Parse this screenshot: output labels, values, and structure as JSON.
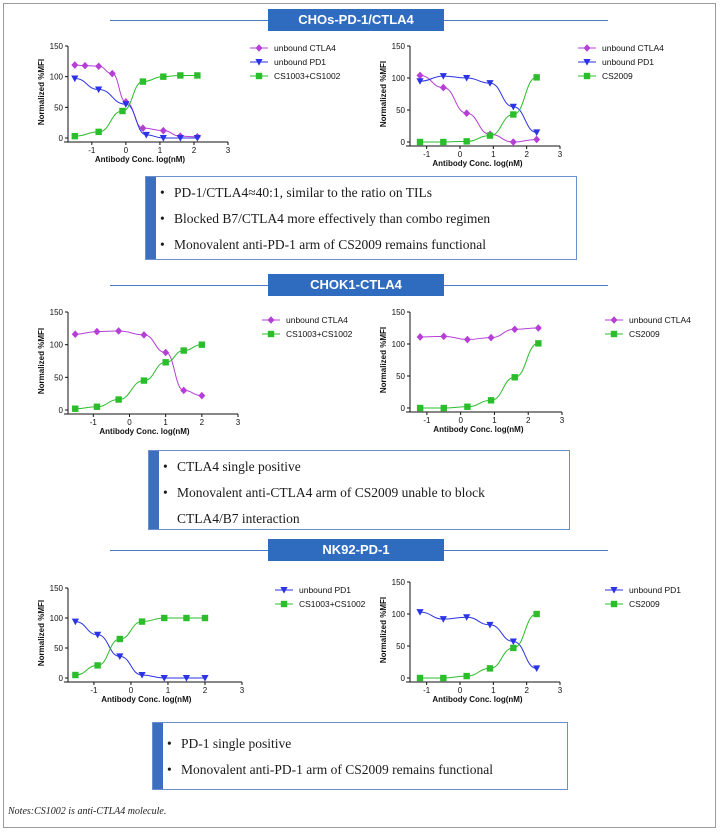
{
  "sections": [
    {
      "title": "CHOs-PD-1/CTLA4",
      "bullets": [
        "PD-1/CTLA4≈40:1, similar to the ratio on TILs",
        "Blocked B7/CTLA4 more effectively than combo regimen",
        "Monovalent anti-PD-1 arm of CS2009 remains functional"
      ]
    },
    {
      "title": "CHOK1-CTLA4",
      "bullets": [
        "CTLA4 single positive",
        "Monovalent anti-CTLA4 arm of CS2009 unable to block CTLA4/B7 interaction"
      ]
    },
    {
      "title": "NK92-PD-1",
      "bullets": [
        "PD-1 single positive",
        "Monovalent anti-PD-1 arm of CS2009 remains functional"
      ]
    }
  ],
  "notes": "Notes:CS1002 is anti-CTLA4 molecule.",
  "colors": {
    "ctla4": "#b53fd6",
    "pd1": "#2b33e6",
    "combo": "#2bbd2b",
    "section": "#2f6bbf"
  },
  "chart_data": [
    {
      "type": "scatter",
      "xlabel": "Antibody Conc. log(nM)",
      "ylabel": "Normalized %MFI",
      "xlim": [
        -1.7,
        3
      ],
      "ylim": [
        0,
        150
      ],
      "xticks": [
        -1,
        0,
        1,
        2,
        3
      ],
      "yticks": [
        0,
        50,
        100,
        150
      ],
      "legend": "right",
      "series": [
        {
          "name": "unbound CTLA4",
          "marker": "diamond",
          "color": "#b53fd6",
          "x": [
            -1.5,
            -1.2,
            -0.8,
            -0.4,
            0.0,
            0.5,
            1.1,
            1.6,
            2.1
          ],
          "y": [
            119,
            118,
            117,
            105,
            59,
            16,
            12,
            3,
            2
          ]
        },
        {
          "name": "unbound PD1",
          "marker": "tri",
          "color": "#2b33e6",
          "x": [
            -1.5,
            -0.8,
            0.0,
            0.6,
            1.1,
            1.6,
            2.1
          ],
          "y": [
            97,
            79,
            55,
            5,
            0,
            0,
            0
          ]
        },
        {
          "name": "CS1003+CS1002",
          "marker": "square",
          "color": "#2bbd2b",
          "x": [
            -1.5,
            -0.8,
            -0.1,
            0.5,
            1.1,
            1.6,
            2.1
          ],
          "y": [
            3,
            10,
            44,
            92,
            100,
            102,
            102
          ]
        }
      ]
    },
    {
      "type": "scatter",
      "xlabel": "Antibody Conc. log(nM)",
      "ylabel": "Normalized %MFI",
      "xlim": [
        -1.5,
        3
      ],
      "ylim": [
        0,
        150
      ],
      "xticks": [
        -1,
        0,
        1,
        2,
        3
      ],
      "yticks": [
        0,
        50,
        100,
        150
      ],
      "legend": "right",
      "series": [
        {
          "name": "unbound CTLA4",
          "marker": "diamond",
          "color": "#b53fd6",
          "x": [
            -1.2,
            -0.5,
            0.2,
            0.9,
            1.6,
            2.3
          ],
          "y": [
            104,
            85,
            45,
            12,
            0,
            4
          ]
        },
        {
          "name": "unbound PD1",
          "marker": "tri",
          "color": "#2b33e6",
          "x": [
            -1.2,
            -0.5,
            0.2,
            0.9,
            1.6,
            2.3
          ],
          "y": [
            95,
            103,
            100,
            92,
            55,
            15
          ]
        },
        {
          "name": "CS2009",
          "marker": "square",
          "color": "#2bbd2b",
          "x": [
            -1.2,
            -0.5,
            0.2,
            0.9,
            1.6,
            2.3
          ],
          "y": [
            0,
            0,
            1,
            10,
            43,
            101
          ]
        }
      ]
    },
    {
      "type": "scatter",
      "xlabel": "Antibody Conc. log(nM)",
      "ylabel": "Normalized %MFI",
      "xlim": [
        -1.7,
        3
      ],
      "ylim": [
        0,
        150
      ],
      "xticks": [
        -1,
        0,
        1,
        2,
        3
      ],
      "yticks": [
        0,
        50,
        100,
        150
      ],
      "legend": "right",
      "series": [
        {
          "name": "unbound CTLA4",
          "marker": "diamond",
          "color": "#b53fd6",
          "x": [
            -1.5,
            -0.9,
            -0.3,
            0.4,
            1.0,
            1.5,
            2.0
          ],
          "y": [
            116,
            120,
            121,
            115,
            88,
            30,
            22
          ]
        },
        {
          "name": "CS1003+CS1002",
          "marker": "square",
          "color": "#2bbd2b",
          "x": [
            -1.5,
            -0.9,
            -0.3,
            0.4,
            1.0,
            1.5,
            2.0
          ],
          "y": [
            2,
            5,
            16,
            45,
            73,
            91,
            100
          ]
        }
      ]
    },
    {
      "type": "scatter",
      "xlabel": "Antibody Conc. log(nM)",
      "ylabel": "Normalized %MFI",
      "xlim": [
        -1.5,
        3
      ],
      "ylim": [
        0,
        150
      ],
      "xticks": [
        -1,
        0,
        1,
        2,
        3
      ],
      "yticks": [
        0,
        50,
        100,
        150
      ],
      "legend": "right",
      "series": [
        {
          "name": "unbound CTLA4",
          "marker": "diamond",
          "color": "#b53fd6",
          "x": [
            -1.2,
            -0.5,
            0.2,
            0.9,
            1.6,
            2.3
          ],
          "y": [
            111,
            112,
            107,
            110,
            123,
            125
          ]
        },
        {
          "name": "CS2009",
          "marker": "square",
          "color": "#2bbd2b",
          "x": [
            -1.2,
            -0.5,
            0.2,
            0.9,
            1.6,
            2.3
          ],
          "y": [
            0,
            0,
            2,
            12,
            48,
            101
          ]
        }
      ]
    },
    {
      "type": "scatter",
      "xlabel": "Antibody Conc. log(nM)",
      "ylabel": "Normalized %MFI",
      "xlim": [
        -1.7,
        3
      ],
      "ylim": [
        0,
        150
      ],
      "xticks": [
        -1,
        0,
        1,
        2,
        3
      ],
      "yticks": [
        0,
        50,
        100,
        150
      ],
      "legend": "right",
      "series": [
        {
          "name": "unbound PD1",
          "marker": "tri",
          "color": "#2b33e6",
          "x": [
            -1.5,
            -0.9,
            -0.3,
            0.3,
            0.9,
            1.5,
            2.0
          ],
          "y": [
            94,
            72,
            36,
            5,
            0,
            0,
            0
          ]
        },
        {
          "name": "CS1003+CS1002",
          "marker": "square",
          "color": "#2bbd2b",
          "x": [
            -1.5,
            -0.9,
            -0.3,
            0.3,
            0.9,
            1.5,
            2.0
          ],
          "y": [
            5,
            21,
            65,
            94,
            100,
            100,
            100
          ]
        }
      ]
    },
    {
      "type": "scatter",
      "xlabel": "Antibody Conc. log(nM)",
      "ylabel": "Normalized %MFI",
      "xlim": [
        -1.5,
        3
      ],
      "ylim": [
        0,
        150
      ],
      "xticks": [
        -1,
        0,
        1,
        2,
        3
      ],
      "yticks": [
        0,
        50,
        100,
        150
      ],
      "legend": "right",
      "series": [
        {
          "name": "unbound PD1",
          "marker": "tri",
          "color": "#2b33e6",
          "x": [
            -1.2,
            -0.5,
            0.2,
            0.9,
            1.6,
            2.3
          ],
          "y": [
            103,
            92,
            95,
            83,
            57,
            15
          ]
        },
        {
          "name": "CS2009",
          "marker": "square",
          "color": "#2bbd2b",
          "x": [
            -1.2,
            -0.5,
            0.2,
            0.9,
            1.6,
            2.3
          ],
          "y": [
            0,
            0,
            3,
            15,
            47,
            100
          ]
        }
      ]
    }
  ]
}
